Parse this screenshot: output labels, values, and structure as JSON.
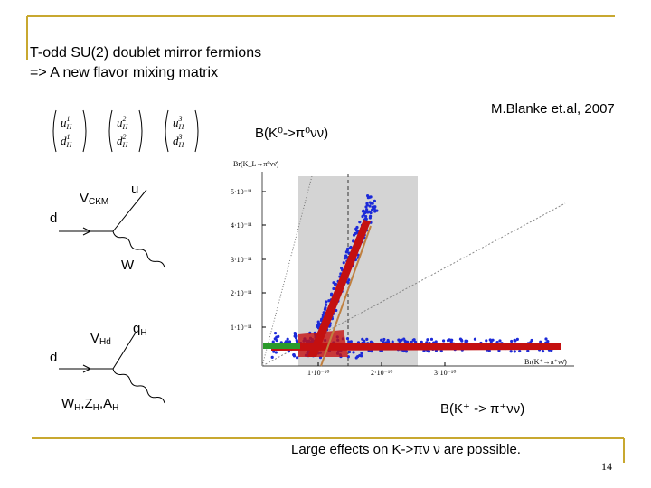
{
  "header": {
    "title_lines": [
      "T-odd SU(2) doublet mirror fermions",
      "=> A new flavor mixing matrix"
    ]
  },
  "citation": "M.Blanke et.al, 2007",
  "quark_doublets": [
    {
      "up": "u",
      "down": "d",
      "generation": "1",
      "tag": "H"
    },
    {
      "up": "u",
      "down": "d",
      "generation": "2",
      "tag": "H"
    },
    {
      "up": "u",
      "down": "d",
      "generation": "3",
      "tag": "H"
    }
  ],
  "diagrams": [
    {
      "coupling": "V",
      "coupling_sub": "CKM",
      "out_quark": "u",
      "in_quark": "d",
      "boson": "W"
    },
    {
      "coupling": "V",
      "coupling_sub": "Hd",
      "out_quark": "q",
      "out_quark_sub": "H",
      "in_quark": "d",
      "bosons": [
        {
          "name": "W",
          "sub": "H"
        },
        {
          "name": "Z",
          "sub": "H"
        },
        {
          "name": "A",
          "sub": "H"
        }
      ],
      "separator": ","
    }
  ],
  "plot": {
    "top_label": "B(K⁰->π⁰νν)",
    "y_axis_label": "Br(K_L→π⁰νν̄)",
    "x_axis_label": "Br(K⁺→π⁺νν̄)",
    "y_tick_labels": [
      "5·10⁻¹¹",
      "4·10⁻¹¹",
      "3·10⁻¹¹",
      "2·10⁻¹¹",
      "1·10⁻¹¹"
    ],
    "x_tick_labels": [
      "1·10⁻¹⁰",
      "2·10⁻¹⁰",
      "3·10⁻¹⁰"
    ],
    "bottom_label": "B(K⁺ -> π⁺νν)"
  },
  "conclusion": "Large effects on K->πν ν  are possible.",
  "page_number": "14"
}
